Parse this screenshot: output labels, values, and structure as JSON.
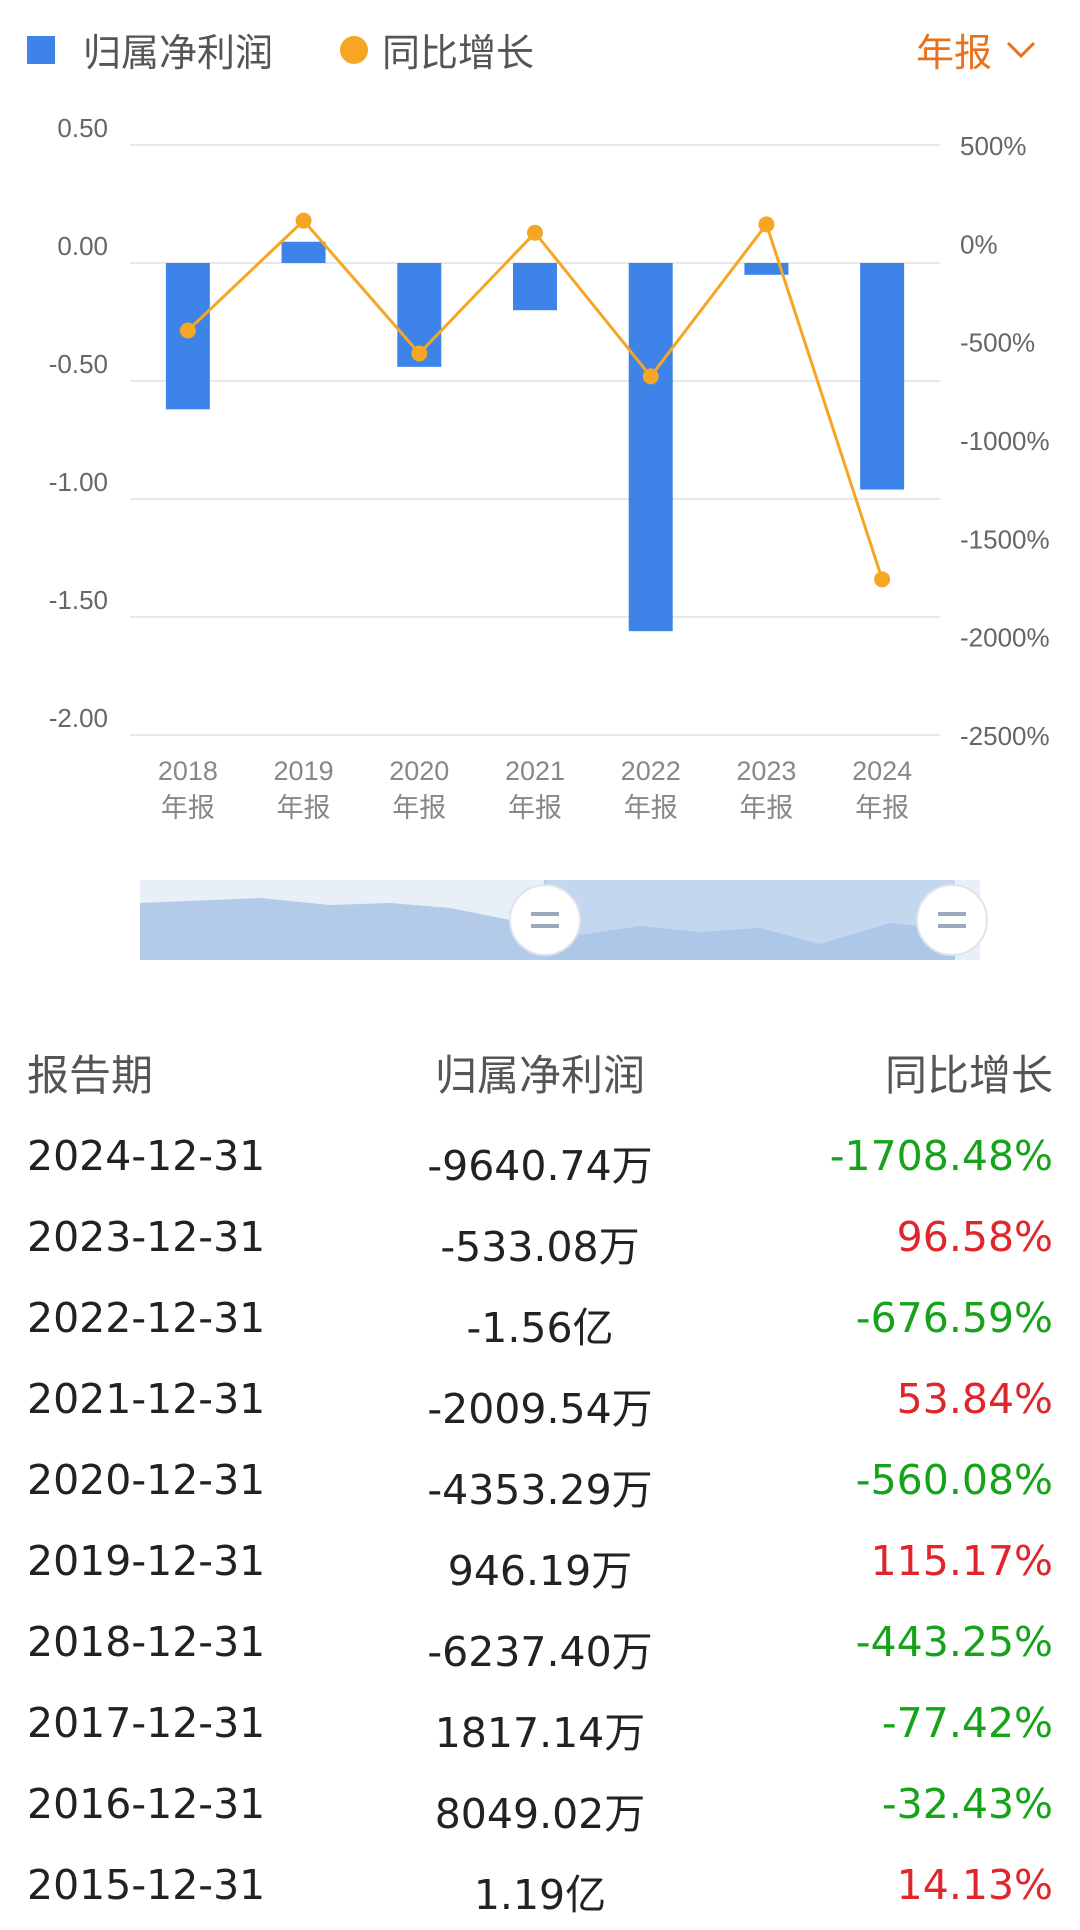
{
  "legend": {
    "net_profit": "归属净利润",
    "yoy_growth": "同比增长"
  },
  "period_select": {
    "label": "年报"
  },
  "colors": {
    "bar": "#3d83e8",
    "line": "#f5a623",
    "positive": "#e0252b",
    "negative": "#16a31a",
    "accent": "#e8711a"
  },
  "chart_data": {
    "type": "bar",
    "categories": [
      "2018\n年报",
      "2019\n年报",
      "2020\n年报",
      "2021\n年报",
      "2022\n年报",
      "2023\n年报",
      "2024\n年报"
    ],
    "series": [
      {
        "type": "bar",
        "axis": "left",
        "values": [
          -0.62,
          0.09,
          -0.44,
          -0.2,
          -1.56,
          -0.05,
          -0.96
        ]
      },
      {
        "type": "line",
        "axis": "right",
        "values": [
          -443.25,
          115.17,
          -560.08,
          53.84,
          -676.59,
          96.58,
          -1708.48
        ]
      }
    ],
    "y_left": {
      "min": -2.0,
      "max": 0.5,
      "ticks": [
        "0.50",
        "0.00",
        "-0.50",
        "-1.00",
        "-1.50",
        "-2.00"
      ]
    },
    "y_right": {
      "min": -2500,
      "max": 500,
      "ticks": [
        "500%",
        "0%",
        "-500%",
        "-1000%",
        "-1500%",
        "-2000%",
        "-2500%"
      ]
    },
    "grid": true
  },
  "table": {
    "headers": [
      "报告期",
      "归属净利润",
      "同比增长"
    ],
    "rows": [
      {
        "date": "2024-12-31",
        "profit": "-9640.74万",
        "growth": "-1708.48%",
        "trend": "neg"
      },
      {
        "date": "2023-12-31",
        "profit": "-533.08万",
        "growth": "96.58%",
        "trend": "pos"
      },
      {
        "date": "2022-12-31",
        "profit": "-1.56亿",
        "growth": "-676.59%",
        "trend": "neg"
      },
      {
        "date": "2021-12-31",
        "profit": "-2009.54万",
        "growth": "53.84%",
        "trend": "pos"
      },
      {
        "date": "2020-12-31",
        "profit": "-4353.29万",
        "growth": "-560.08%",
        "trend": "neg"
      },
      {
        "date": "2019-12-31",
        "profit": "946.19万",
        "growth": "115.17%",
        "trend": "pos"
      },
      {
        "date": "2018-12-31",
        "profit": "-6237.40万",
        "growth": "-443.25%",
        "trend": "neg"
      },
      {
        "date": "2017-12-31",
        "profit": "1817.14万",
        "growth": "-77.42%",
        "trend": "neg"
      },
      {
        "date": "2016-12-31",
        "profit": "8049.02万",
        "growth": "-32.43%",
        "trend": "neg"
      },
      {
        "date": "2015-12-31",
        "profit": "1.19亿",
        "growth": "14.13%",
        "trend": "pos"
      }
    ]
  }
}
